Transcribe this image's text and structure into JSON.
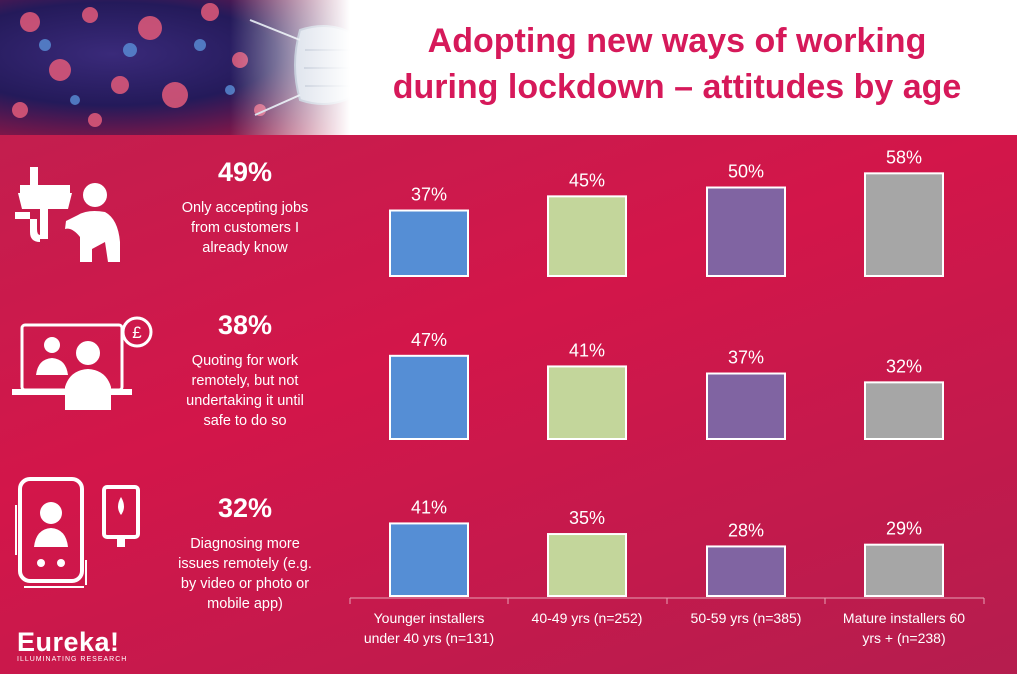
{
  "header": {
    "title_line1": "Adopting new ways of working",
    "title_line2": "during lockdown – attitudes by age"
  },
  "metrics": [
    {
      "percent": "49%",
      "text_lines": [
        "Only accepting jobs",
        "from customers I",
        "already know"
      ],
      "icon": "plumber-icon"
    },
    {
      "percent": "38%",
      "text_lines": [
        "Quoting for work",
        "remotely, but not",
        "undertaking it until",
        "safe to do so"
      ],
      "icon": "video-call-quote-icon"
    },
    {
      "percent": "32%",
      "text_lines": [
        "Diagnosing more",
        "issues remotely (e.g.",
        "by video or photo or",
        "mobile app)"
      ],
      "icon": "mobile-diagnosis-icon"
    }
  ],
  "logo": {
    "name": "Eureka!",
    "tagline": "ILLUMINATING RESEARCH"
  },
  "colors": {
    "blue": "#558ed5",
    "green": "#c3d69b",
    "purple": "#8064a2",
    "gray": "#a6a6a6",
    "title": "#d6195a"
  },
  "chart_data": {
    "type": "bar",
    "categories": [
      [
        "Younger installers",
        "under 40 yrs (n=131)"
      ],
      [
        "40-49 yrs (n=252)"
      ],
      [
        "50-59 yrs (n=385)"
      ],
      [
        "Mature installers 60",
        "yrs + (n=238)"
      ]
    ],
    "panels": [
      {
        "values": [
          37,
          45,
          50,
          58
        ],
        "labels": [
          "37%",
          "45%",
          "50%",
          "58%"
        ]
      },
      {
        "values": [
          47,
          41,
          37,
          32
        ],
        "labels": [
          "47%",
          "41%",
          "37%",
          "32%"
        ]
      },
      {
        "values": [
          41,
          35,
          28,
          29
        ],
        "labels": [
          "41%",
          "35%",
          "28%",
          "29%"
        ]
      }
    ],
    "bar_colors": [
      "#558ed5",
      "#c3d69b",
      "#8064a2",
      "#a6a6a6"
    ]
  }
}
